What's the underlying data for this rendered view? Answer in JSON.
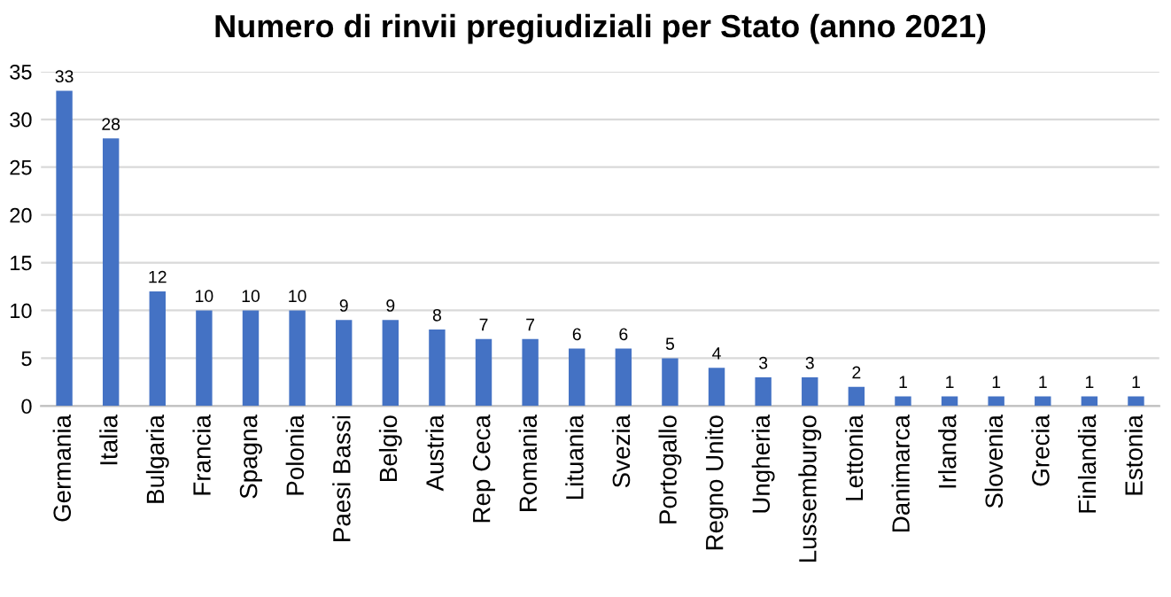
{
  "chart_data": {
    "type": "bar",
    "title": "Numero di rinvii pregiudiziali per Stato (anno 2021)",
    "categories": [
      "Germania",
      "Italia",
      "Bulgaria",
      "Francia",
      "Spagna",
      "Polonia",
      "Paesi Bassi",
      "Belgio",
      "Austria",
      "Rep Ceca",
      "Romania",
      "Lituania",
      "Svezia",
      "Portogallo",
      "Regno Unito",
      "Ungheria",
      "Lussemburgo",
      "Lettonia",
      "Danimarca",
      "Irlanda",
      "Slovenia",
      "Grecia",
      "Finlandia",
      "Estonia"
    ],
    "values": [
      33,
      28,
      12,
      10,
      10,
      10,
      9,
      9,
      8,
      7,
      7,
      6,
      6,
      5,
      4,
      3,
      3,
      2,
      1,
      1,
      1,
      1,
      1,
      1
    ],
    "color": "#4472c4",
    "ylim": [
      0,
      35
    ],
    "yticks": [
      0,
      5,
      10,
      15,
      20,
      25,
      30,
      35
    ],
    "grid": "y",
    "data_labels": true
  }
}
